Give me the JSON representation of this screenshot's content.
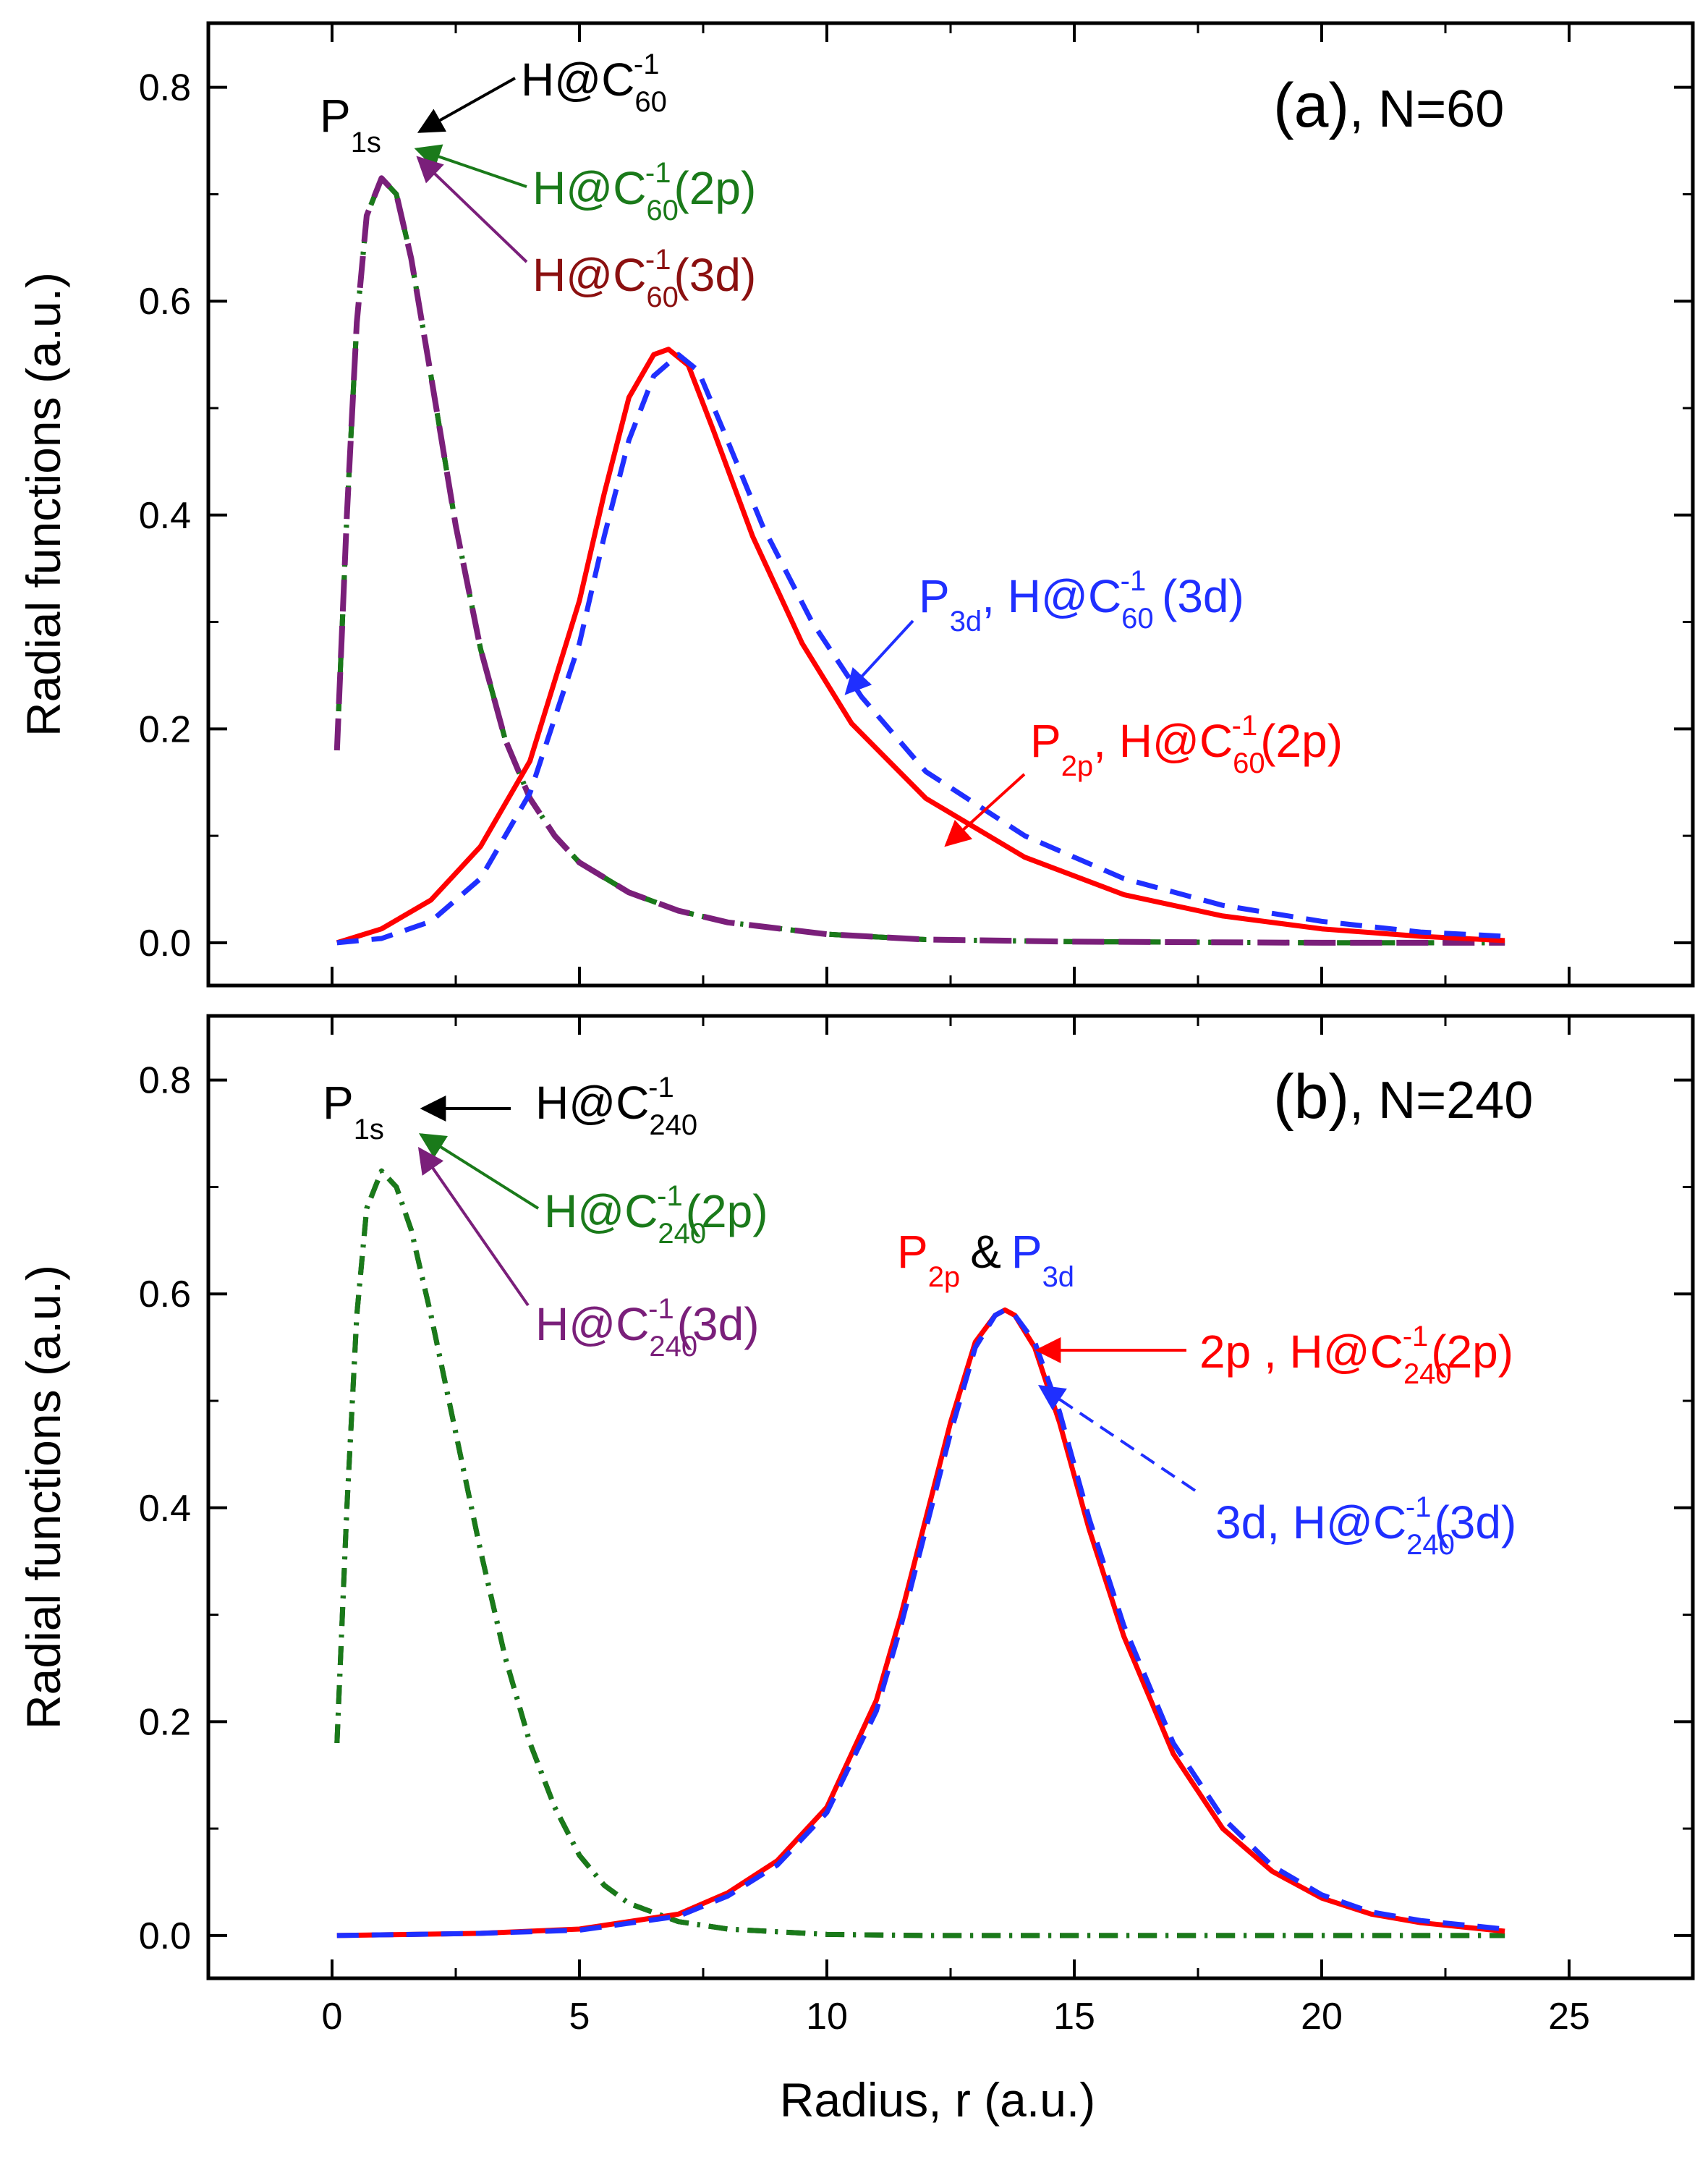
{
  "chart_data": [
    {
      "type": "line",
      "panel": "(a)",
      "panel_label_rest": ", N=60",
      "ylabel": "Radial functions (a.u.)",
      "xlim": [
        -2.5,
        27.5
      ],
      "ylim": [
        -0.04,
        0.86
      ],
      "x_ticks": [
        "0",
        "5",
        "10",
        "15",
        "20",
        "25"
      ],
      "y_ticks": [
        "0.0",
        "0.2",
        "0.4",
        "0.6",
        "0.8"
      ],
      "series": [
        {
          "name": "P1s, H@C60^-1",
          "style": "dash-dot",
          "color": "#000000",
          "x": [
            0.1,
            0.3,
            0.5,
            0.7,
            1.0,
            1.3,
            1.6,
            2.0,
            2.5,
            3.0,
            3.5,
            4.0,
            4.5,
            5.0,
            6.0,
            7.0,
            8.0,
            10.0,
            12.0,
            15.0,
            20.0,
            23.7
          ],
          "y": [
            0.18,
            0.4,
            0.58,
            0.68,
            0.715,
            0.7,
            0.64,
            0.53,
            0.39,
            0.275,
            0.19,
            0.135,
            0.1,
            0.075,
            0.047,
            0.03,
            0.019,
            0.008,
            0.003,
            0.001,
            0.0,
            0.0
          ]
        },
        {
          "name": "P1s, H@C60^-1(2p)",
          "style": "dash-dot",
          "color": "#1a7a1a",
          "x": [
            0.1,
            0.3,
            0.5,
            0.7,
            1.0,
            1.3,
            1.6,
            2.0,
            2.5,
            3.0,
            3.5,
            4.0,
            4.5,
            5.0,
            6.0,
            7.0,
            8.0,
            10.0,
            12.0,
            15.0,
            20.0,
            23.7
          ],
          "y": [
            0.18,
            0.4,
            0.58,
            0.68,
            0.715,
            0.7,
            0.64,
            0.53,
            0.39,
            0.275,
            0.19,
            0.135,
            0.1,
            0.075,
            0.047,
            0.03,
            0.019,
            0.008,
            0.003,
            0.001,
            0.0,
            0.0
          ]
        },
        {
          "name": "P1s, H@C60^-1(3d)",
          "style": "long-dash",
          "color": "#7a1f7a",
          "x": [
            0.1,
            0.3,
            0.5,
            0.7,
            1.0,
            1.3,
            1.6,
            2.0,
            2.5,
            3.0,
            3.5,
            4.0,
            4.5,
            5.0,
            6.0,
            7.0,
            8.0,
            10.0,
            12.0,
            15.0,
            20.0,
            23.7
          ],
          "y": [
            0.18,
            0.4,
            0.58,
            0.68,
            0.715,
            0.7,
            0.64,
            0.53,
            0.39,
            0.275,
            0.19,
            0.135,
            0.1,
            0.075,
            0.047,
            0.03,
            0.019,
            0.008,
            0.003,
            0.001,
            0.0,
            0.0
          ]
        },
        {
          "name": "P2p, H@C60^-1(2p)",
          "style": "solid",
          "color": "#ff0000",
          "x": [
            0.1,
            1,
            2,
            3,
            4,
            5,
            5.5,
            6,
            6.5,
            6.8,
            7.2,
            7.7,
            8.5,
            9.5,
            10.5,
            12,
            14,
            16,
            18,
            20,
            22,
            23.7
          ],
          "y": [
            0.0,
            0.013,
            0.04,
            0.09,
            0.17,
            0.32,
            0.42,
            0.51,
            0.55,
            0.555,
            0.54,
            0.48,
            0.38,
            0.28,
            0.205,
            0.135,
            0.08,
            0.045,
            0.025,
            0.013,
            0.006,
            0.002
          ]
        },
        {
          "name": "P3d, H@C60^-1 (3d)",
          "style": "dashed",
          "color": "#1f2fff",
          "x": [
            0.1,
            1,
            2,
            3,
            4,
            5,
            5.5,
            6,
            6.5,
            7.0,
            7.4,
            7.9,
            8.7,
            9.7,
            10.7,
            12,
            14,
            16,
            18,
            20,
            22,
            23.7
          ],
          "y": [
            0.0,
            0.004,
            0.02,
            0.06,
            0.14,
            0.28,
            0.38,
            0.47,
            0.53,
            0.55,
            0.535,
            0.48,
            0.39,
            0.3,
            0.23,
            0.16,
            0.1,
            0.06,
            0.035,
            0.02,
            0.01,
            0.006
          ]
        }
      ],
      "annotations": [
        {
          "base": "P",
          "sub": "1s",
          "color": "#000000"
        },
        {
          "base": "H@C",
          "sub": "60",
          "sup": "-1",
          "rest": "",
          "color": "#000000"
        },
        {
          "base": "H@C",
          "sub": "60",
          "sup": "-1",
          "rest": "(2p)",
          "color": "#1a7a1a"
        },
        {
          "base": "H@C",
          "sub": "60",
          "sup": "-1",
          "rest": "(3d)",
          "color": "#8b1010"
        },
        {
          "base": "P",
          "sub": "3d",
          "mid": ", H@C",
          "sub2": "60",
          "sup": "-1",
          "rest": " (3d)",
          "color": "#1f2fff"
        },
        {
          "base": "P",
          "sub": "2p",
          "mid": ", H@C",
          "sub2": "60",
          "sup": "-1",
          "rest": "(2p)",
          "color": "#ff0000"
        }
      ]
    },
    {
      "type": "line",
      "panel": "(b)",
      "panel_label_rest": ", N=240",
      "xlabel": "Radius, r (a.u.)",
      "ylabel": "Radial functions (a.u.)",
      "xlim": [
        -2.5,
        27.5
      ],
      "ylim": [
        -0.04,
        0.86
      ],
      "x_ticks": [
        "0",
        "5",
        "10",
        "15",
        "20",
        "25"
      ],
      "y_ticks": [
        "0.0",
        "0.2",
        "0.4",
        "0.6",
        "0.8"
      ],
      "series": [
        {
          "name": "P1s, H@C240^-1",
          "style": "dash-dot",
          "color": "#000000",
          "x": [
            0.1,
            0.3,
            0.5,
            0.7,
            1.0,
            1.3,
            1.6,
            2.0,
            2.5,
            3.0,
            3.5,
            4.0,
            4.5,
            5.0,
            5.5,
            6.0,
            7.0,
            8.0,
            10.0,
            12.0,
            15.0,
            20.0,
            23.7
          ],
          "y": [
            0.18,
            0.4,
            0.58,
            0.68,
            0.715,
            0.7,
            0.66,
            0.58,
            0.47,
            0.36,
            0.26,
            0.18,
            0.12,
            0.075,
            0.047,
            0.03,
            0.013,
            0.006,
            0.001,
            0.0,
            0.0,
            0.0,
            0.0
          ]
        },
        {
          "name": "P1s, H@C240^-1(2p)",
          "style": "dash-dot",
          "color": "#1a7a1a",
          "x": [
            0.1,
            0.3,
            0.5,
            0.7,
            1.0,
            1.3,
            1.6,
            2.0,
            2.5,
            3.0,
            3.5,
            4.0,
            4.5,
            5.0,
            5.5,
            6.0,
            7.0,
            8.0,
            10.0,
            12.0,
            15.0,
            20.0,
            23.7
          ],
          "y": [
            0.18,
            0.4,
            0.58,
            0.68,
            0.715,
            0.7,
            0.66,
            0.58,
            0.47,
            0.36,
            0.26,
            0.18,
            0.12,
            0.075,
            0.047,
            0.03,
            0.013,
            0.006,
            0.001,
            0.0,
            0.0,
            0.0,
            0.0
          ]
        },
        {
          "name": "P2p, H@C240^-1(2p)",
          "style": "solid",
          "color": "#ff0000",
          "x": [
            0.1,
            3,
            5,
            7,
            8,
            9,
            10,
            11,
            11.5,
            12,
            12.5,
            13,
            13.4,
            13.6,
            13.8,
            14.2,
            14.7,
            15.3,
            16,
            17,
            18,
            19,
            20,
            21,
            22,
            23.7
          ],
          "y": [
            0.0,
            0.002,
            0.006,
            0.02,
            0.04,
            0.07,
            0.12,
            0.22,
            0.3,
            0.39,
            0.48,
            0.555,
            0.58,
            0.585,
            0.58,
            0.55,
            0.48,
            0.38,
            0.28,
            0.17,
            0.1,
            0.06,
            0.035,
            0.02,
            0.012,
            0.004
          ]
        },
        {
          "name": "P3d, H@C240^-1(3d)",
          "style": "dashed",
          "color": "#1f2fff",
          "x": [
            0.1,
            3,
            5,
            7,
            8,
            9,
            10,
            11,
            11.5,
            12,
            12.5,
            13,
            13.4,
            13.6,
            13.8,
            14.2,
            14.7,
            15.3,
            16,
            17,
            18,
            19,
            20,
            21,
            22,
            23.7
          ],
          "y": [
            0.0,
            0.002,
            0.005,
            0.018,
            0.037,
            0.066,
            0.115,
            0.21,
            0.29,
            0.38,
            0.47,
            0.55,
            0.58,
            0.585,
            0.58,
            0.555,
            0.49,
            0.39,
            0.29,
            0.18,
            0.11,
            0.065,
            0.038,
            0.022,
            0.014,
            0.006
          ]
        }
      ],
      "annotations": [
        {
          "base": "P",
          "sub": "1s",
          "color": "#000000"
        },
        {
          "base": "H@C",
          "sub": "240",
          "sup": "-1",
          "rest": "",
          "color": "#000000"
        },
        {
          "base": "H@C",
          "sub": "240",
          "sup": "-1",
          "rest": "(2p)",
          "color": "#1a7a1a"
        },
        {
          "base": "H@C",
          "sub": "240",
          "sup": "-1",
          "rest": "(3d)",
          "color": "#7a1f7a"
        },
        {
          "p2p": "P",
          "p2p_sub": "2p",
          "amp": "&",
          "p3d": "P",
          "p3d_sub": "3d"
        },
        {
          "base": "2p , H@C",
          "sub": "240",
          "sup": "-1",
          "rest": "(2p)",
          "color": "#ff0000"
        },
        {
          "base": "3d, H@C",
          "sub": "240",
          "sup": "-1",
          "rest": "(3d)",
          "color": "#1f2fff"
        }
      ]
    }
  ]
}
